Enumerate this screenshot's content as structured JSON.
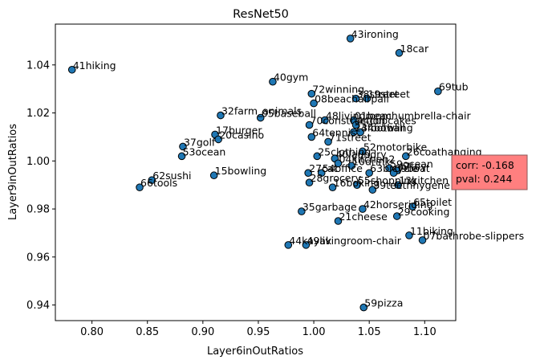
{
  "chart_data": {
    "type": "scatter",
    "title": "ResNet50",
    "xlabel": "Layer6inOutRatios",
    "ylabel": "Layer9inOutRatios",
    "xlim": [
      0.767,
      1.128
    ],
    "ylim": [
      0.9335,
      1.057
    ],
    "xticks": [
      "0.80",
      "0.85",
      "0.90",
      "0.95",
      "1.00",
      "1.05",
      "1.10"
    ],
    "xtick_values": [
      0.8,
      0.85,
      0.9,
      0.95,
      1.0,
      1.05,
      1.1
    ],
    "yticks": [
      "0.94",
      "0.96",
      "0.98",
      "1.00",
      "1.02",
      "1.04"
    ],
    "ytick_values": [
      0.94,
      0.96,
      0.98,
      1.0,
      1.02,
      1.04
    ],
    "grid": false,
    "marker_color": "#1f77b4",
    "points": [
      {
        "x": 1.033,
        "y": 1.051,
        "label": "43ironing"
      },
      {
        "x": 1.077,
        "y": 1.045,
        "label": "18car"
      },
      {
        "x": 0.782,
        "y": 1.038,
        "label": "41hiking"
      },
      {
        "x": 0.963,
        "y": 1.033,
        "label": "40gym"
      },
      {
        "x": 1.112,
        "y": 1.029,
        "label": "69tub"
      },
      {
        "x": 0.998,
        "y": 1.028,
        "label": "72winning"
      },
      {
        "x": 1.038,
        "y": 1.026,
        "label": "38street"
      },
      {
        "x": 1.048,
        "y": 1.026,
        "label": "19street"
      },
      {
        "x": 1.0,
        "y": 1.024,
        "label": "08beachairpall"
      },
      {
        "x": 0.916,
        "y": 1.019,
        "label": "32farm_animals"
      },
      {
        "x": 0.952,
        "y": 1.018,
        "label": "05baseball"
      },
      {
        "x": 1.01,
        "y": 1.017,
        "label": "48livingroom"
      },
      {
        "x": 1.036,
        "y": 1.017,
        "label": "01beachumbrella-chair"
      },
      {
        "x": 0.996,
        "y": 1.015,
        "label": "70construction"
      },
      {
        "x": 1.038,
        "y": 1.015,
        "label": "44cupcakes"
      },
      {
        "x": 1.036,
        "y": 1.012,
        "label": "24football"
      },
      {
        "x": 1.042,
        "y": 1.012,
        "label": "34bowling"
      },
      {
        "x": 0.998,
        "y": 1.01,
        "label": "64tennis"
      },
      {
        "x": 0.911,
        "y": 1.011,
        "label": "17burger"
      },
      {
        "x": 0.914,
        "y": 1.009,
        "label": "20casino"
      },
      {
        "x": 1.013,
        "y": 1.008,
        "label": "71street"
      },
      {
        "x": 0.882,
        "y": 1.006,
        "label": "37golf"
      },
      {
        "x": 1.044,
        "y": 1.004,
        "label": "52motorbike"
      },
      {
        "x": 1.003,
        "y": 1.002,
        "label": "25clothing"
      },
      {
        "x": 1.083,
        "y": 1.002,
        "label": "26coathanging"
      },
      {
        "x": 0.881,
        "y": 1.002,
        "label": "53ocean"
      },
      {
        "x": 1.019,
        "y": 1.001,
        "label": "40laundry"
      },
      {
        "x": 1.022,
        "y": 0.999,
        "label": "04kitchen2"
      },
      {
        "x": 1.034,
        "y": 0.998,
        "label": "10drink"
      },
      {
        "x": 1.068,
        "y": 0.997,
        "label": "59ocean"
      },
      {
        "x": 1.075,
        "y": 0.996,
        "label": "47toy"
      },
      {
        "x": 0.995,
        "y": 0.995,
        "label": "27cat"
      },
      {
        "x": 1.007,
        "y": 0.995,
        "label": "54office"
      },
      {
        "x": 1.05,
        "y": 0.995,
        "label": "63bicycle"
      },
      {
        "x": 1.072,
        "y": 0.995,
        "label": "09boat"
      },
      {
        "x": 0.91,
        "y": 0.994,
        "label": "15bowling"
      },
      {
        "x": 0.854,
        "y": 0.992,
        "label": "62sushi"
      },
      {
        "x": 0.996,
        "y": 0.991,
        "label": "28grocery"
      },
      {
        "x": 1.017,
        "y": 0.989,
        "label": "16boxing"
      },
      {
        "x": 1.039,
        "y": 0.99,
        "label": "55shopping"
      },
      {
        "x": 1.076,
        "y": 0.99,
        "label": "13kitchen"
      },
      {
        "x": 0.843,
        "y": 0.989,
        "label": "66tools"
      },
      {
        "x": 1.053,
        "y": 0.988,
        "label": "39teethhygene"
      },
      {
        "x": 1.089,
        "y": 0.981,
        "label": "65toilet"
      },
      {
        "x": 1.044,
        "y": 0.98,
        "label": "42horseriding"
      },
      {
        "x": 0.989,
        "y": 0.979,
        "label": "35garbage"
      },
      {
        "x": 1.075,
        "y": 0.977,
        "label": "29cooking"
      },
      {
        "x": 1.022,
        "y": 0.975,
        "label": "21cheese"
      },
      {
        "x": 1.086,
        "y": 0.969,
        "label": "11biking"
      },
      {
        "x": 1.098,
        "y": 0.967,
        "label": "07bathrobe-slippers"
      },
      {
        "x": 0.977,
        "y": 0.965,
        "label": "44kayak"
      },
      {
        "x": 0.993,
        "y": 0.965,
        "label": "49livingroom-chair"
      },
      {
        "x": 1.045,
        "y": 0.939,
        "label": "59pizza"
      }
    ],
    "annotation": {
      "line1": "corr: -0.168",
      "line2": "pval: 0.244",
      "box_color": "#ff7f7f",
      "placement": "right-middle"
    }
  }
}
